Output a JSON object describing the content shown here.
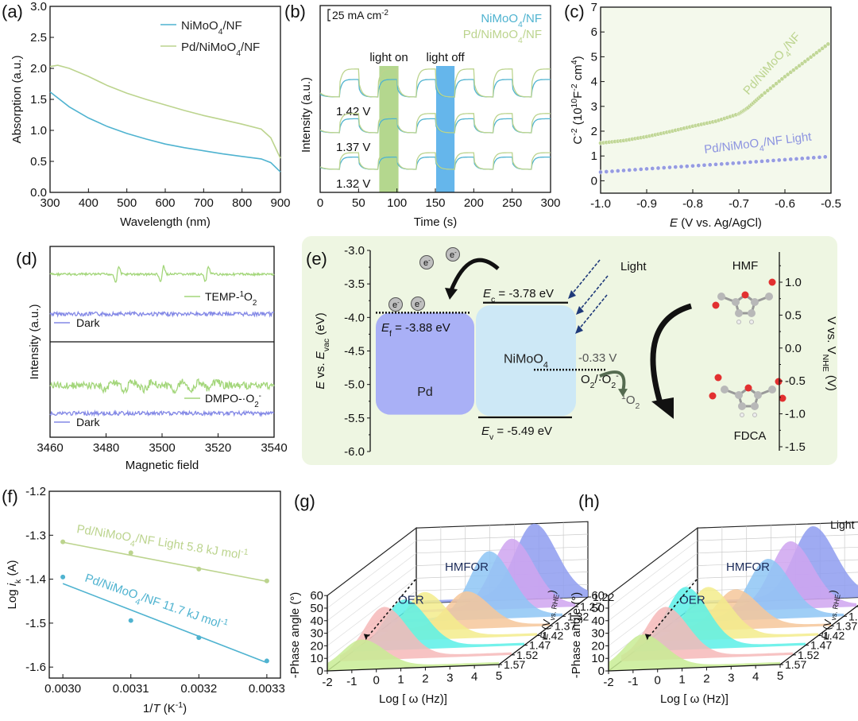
{
  "figure": {
    "panel_labels": [
      "(a)",
      "(b)",
      "(c)",
      "(d)",
      "(e)",
      "(f)",
      "(g)",
      "(h)"
    ]
  },
  "colors": {
    "nimoo4": "#4fb3d0",
    "pd_nimoo4": "#bcd48e",
    "light_series": "#8c93e0",
    "dark_series": "#8388e6",
    "green_signal": "#a3d67a",
    "light_on_band": "#a7d07a",
    "light_off_band": "#4aa9e8",
    "pd_box": "#a9b0f6",
    "nimoo4_box": "#cde8f6",
    "scheme_bg": "#eef6e2"
  },
  "chart_data": [
    {
      "id": "a",
      "type": "line",
      "title": "",
      "xlabel": "Wavelength (nm)",
      "ylabel": "Absorption (a.u.)",
      "xlim": [
        300,
        900
      ],
      "ylim": [
        0.0,
        3.0
      ],
      "xticks": [
        "300",
        "400",
        "500",
        "600",
        "700",
        "800",
        "900"
      ],
      "yticks": [
        "0.0",
        "0.5",
        "1.0",
        "1.5",
        "2.0",
        "2.5",
        "3.0"
      ],
      "legend": "top-right",
      "series": [
        {
          "name": "NiMoO4/NF",
          "label_main": "NiMoO",
          "label_sub": "4",
          "label_tail": "/NF",
          "x": [
            300,
            350,
            400,
            450,
            500,
            550,
            600,
            650,
            700,
            750,
            800,
            850,
            875,
            900
          ],
          "y": [
            1.62,
            1.38,
            1.2,
            1.06,
            0.95,
            0.86,
            0.78,
            0.72,
            0.67,
            0.62,
            0.58,
            0.54,
            0.48,
            0.33
          ]
        },
        {
          "name": "Pd/NiMoO4/NF",
          "label_main": "Pd/NiMoO",
          "label_sub": "4",
          "label_tail": "/NF",
          "x": [
            300,
            320,
            350,
            400,
            450,
            500,
            550,
            600,
            650,
            700,
            750,
            800,
            850,
            875,
            900
          ],
          "y": [
            2.03,
            2.05,
            2.0,
            1.87,
            1.72,
            1.6,
            1.5,
            1.41,
            1.32,
            1.24,
            1.17,
            1.1,
            1.02,
            0.88,
            0.55
          ]
        }
      ]
    },
    {
      "id": "b",
      "type": "line",
      "xlabel": "Time (s)",
      "ylabel": "Intensity (a.u.)",
      "xlim": [
        0,
        300
      ],
      "xticks": [
        "0",
        "50",
        "100",
        "150",
        "200",
        "250",
        "300"
      ],
      "scale_bar": "25 mA cm",
      "scale_bar_sup": "-2",
      "legend": "top-right",
      "legend_entries": [
        {
          "main": "NiMoO",
          "sub": "4",
          "tail": "/NF"
        },
        {
          "main": "Pd/NiMoO",
          "sub": "4",
          "tail": "/NF"
        }
      ],
      "bands": [
        {
          "label": "light on",
          "x0": 77,
          "x1": 102
        },
        {
          "label": "light off",
          "x0": 151,
          "x1": 175
        }
      ],
      "potentials": [
        "1.42 V",
        "1.37 V",
        "1.32 V"
      ],
      "period_s": 50,
      "on_start_s": 26,
      "on_duration_s": 25,
      "step_heights": {
        "1.42 V": {
          "NiMoO4/NF": 1.0,
          "Pd/NiMoO4/NF": 1.6
        },
        "1.37 V": {
          "NiMoO4/NF": 0.8,
          "Pd/NiMoO4/NF": 1.1
        },
        "1.32 V": {
          "NiMoO4/NF": 0.7,
          "Pd/NiMoO4/NF": 0.95
        }
      }
    },
    {
      "id": "c",
      "type": "scatter",
      "xlabel_italic": "E",
      "xlabel": " (V vs. Ag/AgCl)",
      "ylabel": "C-2 (1010F-2 cm4)",
      "xlim": [
        -1.0,
        -0.5
      ],
      "ylim": [
        -0.5,
        7
      ],
      "xticks": [
        "-1.0",
        "-0.9",
        "-0.8",
        "-0.7",
        "-0.6",
        "-0.5"
      ],
      "yticks": [
        "0",
        "1",
        "2",
        "3",
        "4",
        "5",
        "6",
        "7"
      ],
      "series": [
        {
          "name": "Pd/NiMoO4/NF",
          "label_main": "Pd/NiMoO",
          "label_sub": "4",
          "label_tail": "/NF",
          "x": [
            -1.0,
            -0.95,
            -0.9,
            -0.85,
            -0.8,
            -0.75,
            -0.7,
            -0.68,
            -0.65,
            -0.6,
            -0.55,
            -0.5
          ],
          "y": [
            1.52,
            1.62,
            1.78,
            1.98,
            2.2,
            2.4,
            2.7,
            2.95,
            3.45,
            4.2,
            4.9,
            5.6
          ]
        },
        {
          "name": "Pd/NiMoO4/NF Light",
          "label_main": "Pd/NiMoO",
          "label_sub": "4",
          "label_tail": "/NF Light",
          "x": [
            -1.0,
            -0.9,
            -0.8,
            -0.7,
            -0.6,
            -0.5
          ],
          "y": [
            0.35,
            0.48,
            0.6,
            0.72,
            0.85,
            0.98
          ]
        }
      ]
    },
    {
      "id": "d",
      "type": "line",
      "xlabel": "Magnetic field",
      "ylabel": "Intensity (a.u.)",
      "xlim": [
        3460,
        3540
      ],
      "xticks": [
        "3460",
        "3480",
        "3500",
        "3520",
        "3540"
      ],
      "subpanels": [
        {
          "signal": "TEMP-1O2",
          "signal_main": "TEMP-",
          "signal_sup": "1",
          "signal_o": "O",
          "signal_sub": "2",
          "peaks_at": [
            3484,
            3500,
            3516
          ],
          "dark": "Dark"
        },
        {
          "signal": "DMPO-·O2-",
          "signal_main": "DMPO-·O",
          "signal_sub": "2",
          "signal_sup": "-",
          "peaks_at": [
            3481,
            3488,
            3495,
            3506,
            3512,
            3518
          ],
          "dark": "Dark"
        }
      ]
    },
    {
      "id": "e",
      "type": "diagram",
      "ylabel_left": "E vs. Evac (eV)",
      "ylim_left": [
        -6.0,
        -3.0
      ],
      "yticks_left": [
        "-3.0",
        "-3.5",
        "-4.0",
        "-4.5",
        "-5.0",
        "-5.5",
        "-6.0"
      ],
      "ylabel_right": "V vs. VNHE (V)",
      "ylim_right": [
        -1.5,
        1.0
      ],
      "yticks_right": [
        "1.0",
        "0.5",
        "0.0",
        "-0.5",
        "-1.0",
        "-1.5"
      ],
      "pd_label": "Pd",
      "nimoo4_label": "NiMoO",
      "ef": {
        "label": " = -3.88 eV",
        "value": -3.88
      },
      "ec": {
        "label": " = -3.78 eV",
        "value": -3.78
      },
      "ev": {
        "label": " = -5.49 eV",
        "value": -5.49
      },
      "o2_potential": "-0.33 V",
      "o2_couple": "O2/·O2-",
      "singlet_o2": "1O2",
      "light_label": "Light",
      "hmf_label": "HMF",
      "fdca_label": "FDCA",
      "electron_label": "e"
    },
    {
      "id": "f",
      "type": "scatter",
      "xlabel": "1/T (K-1)",
      "ylabel": "Log ik (A)",
      "xlim": [
        0.00298,
        0.00332
      ],
      "ylim": [
        -1.625,
        -1.2
      ],
      "xticks": [
        "0.0030",
        "0.0031",
        "0.0032",
        "0.0033"
      ],
      "yticks": [
        "-1.2",
        "-1.3",
        "-1.4",
        "-1.5",
        "-1.6"
      ],
      "series": [
        {
          "name": "Pd/NiMoO4/NF Light",
          "annotation": "Pd/NiMoO4/NF Light 5.8 kJ mol-1",
          "x": [
            0.003,
            0.0031,
            0.0032,
            0.0033
          ],
          "y": [
            -1.315,
            -1.34,
            -1.377,
            -1.404
          ],
          "fit": [
            -1.316,
            -1.405
          ]
        },
        {
          "name": "Pd/NiMoO4/NF",
          "annotation": "Pd/NiMoO4/NF 11.7 kJ mol-1",
          "x": [
            0.003,
            0.0031,
            0.0032,
            0.0033
          ],
          "y": [
            -1.395,
            -1.494,
            -1.533,
            -1.586
          ],
          "fit": [
            -1.41,
            -1.59
          ]
        }
      ]
    },
    {
      "id": "g",
      "type": "area",
      "xlabel": "Log [ ω (Hz)]",
      "ylabel": "-Phase angle (°)",
      "zlabel": "E (V vs. RHE)",
      "xticks": [
        "-2",
        "-1",
        "0",
        "1",
        "2",
        "3",
        "4",
        "5"
      ],
      "yticks": [
        "0",
        "10",
        "20",
        "30",
        "40",
        "50",
        "60"
      ],
      "zticks": [
        "1.22",
        "1.27",
        "1.32",
        "1.37",
        "1.42",
        "1.47",
        "1.52",
        "1.57"
      ],
      "annotations": [
        "HMFOR",
        "OER"
      ],
      "corner_label": "",
      "series": [
        {
          "potential": "1.22",
          "peak_logw": 2.8,
          "peak_angle": 58,
          "color": "#8e9cf0"
        },
        {
          "potential": "1.27",
          "peak_logw": 2.4,
          "peak_angle": 54,
          "color": "#cfa5f0"
        },
        {
          "potential": "1.32",
          "peak_logw": 2.0,
          "peak_angle": 52,
          "color": "#8ec6f4"
        },
        {
          "potential": "1.37",
          "peak_logw": 1.6,
          "peak_angle": 28,
          "color": "#f6c79a"
        },
        {
          "potential": "1.42",
          "peak_logw": 0.4,
          "peak_angle": 36,
          "color": "#f3ec8c"
        },
        {
          "potential": "1.47",
          "peak_logw": 0.1,
          "peak_angle": 38,
          "color": "#5af0e8"
        },
        {
          "potential": "1.52",
          "peak_logw": -0.2,
          "peak_angle": 40,
          "color": "#f6b9b9"
        },
        {
          "potential": "1.57",
          "peak_logw": -0.6,
          "peak_angle": 22,
          "color": "#c8ec94"
        }
      ]
    },
    {
      "id": "h",
      "type": "area",
      "xlabel": "Log [ ω (Hz)]",
      "ylabel": "-Phase angle (°)",
      "zlabel": "E (V vs. RHE)",
      "xticks": [
        "-2",
        "-1",
        "0",
        "1",
        "2",
        "3",
        "4",
        "5"
      ],
      "yticks": [
        "0",
        "10",
        "20",
        "30",
        "40",
        "50",
        "60"
      ],
      "zticks": [
        "1.22",
        "1.27",
        "1.32",
        "1.37",
        "1.42",
        "1.47",
        "1.52",
        "1.57"
      ],
      "annotations": [
        "HMFOR",
        "OER"
      ],
      "corner_label": "Light",
      "series": [
        {
          "potential": "1.22",
          "peak_logw": 2.7,
          "peak_angle": 56,
          "color": "#8e9cf0"
        },
        {
          "potential": "1.27",
          "peak_logw": 2.3,
          "peak_angle": 52,
          "color": "#cfa5f0"
        },
        {
          "potential": "1.32",
          "peak_logw": 1.9,
          "peak_angle": 46,
          "color": "#8ec6f4"
        },
        {
          "potential": "1.37",
          "peak_logw": 1.1,
          "peak_angle": 30,
          "color": "#f6c79a"
        },
        {
          "potential": "1.42",
          "peak_logw": 0.5,
          "peak_angle": 40,
          "color": "#f3ec8c"
        },
        {
          "potential": "1.47",
          "peak_logw": 0.1,
          "peak_angle": 48,
          "color": "#5af0e8"
        },
        {
          "potential": "1.52",
          "peak_logw": -0.2,
          "peak_angle": 40,
          "color": "#f6b9b9"
        },
        {
          "potential": "1.57",
          "peak_logw": -0.6,
          "peak_angle": 26,
          "color": "#c8ec94"
        }
      ]
    }
  ]
}
